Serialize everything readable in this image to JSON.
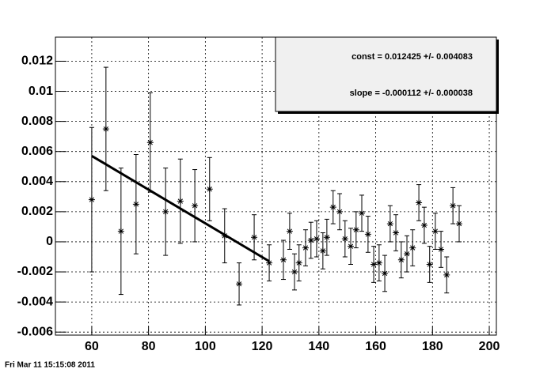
{
  "chart_data": {
    "type": "scatter",
    "x": [
      60,
      65,
      70.3,
      75.6,
      80.6,
      86,
      91.2,
      96.3,
      101.5,
      106.8,
      111.9,
      117.2,
      122.5,
      127.5,
      129.7,
      131.4,
      133,
      135.3,
      137.2,
      139.2,
      141.4,
      142.8,
      145,
      147.3,
      149.2,
      151.2,
      153.1,
      155.1,
      157.3,
      159.3,
      161.2,
      163.2,
      165.1,
      167.1,
      169,
      171,
      173,
      175.2,
      177.1,
      179,
      181,
      183,
      185,
      187.2,
      189.4
    ],
    "values": [
      0.0028,
      0.0075,
      0.0007,
      0.0025,
      0.0066,
      0.002,
      0.0027,
      0.0024,
      0.0035,
      0.0004,
      -0.0028,
      0.0003,
      -0.0014,
      -0.0012,
      0.0007,
      -0.002,
      -0.0014,
      -0.0004,
      0.0001,
      0.0002,
      -0.0006,
      0.0003,
      0.0023,
      0.002,
      0.0002,
      -0.0003,
      0.0008,
      0.0019,
      0.0005,
      -0.0015,
      -0.0014,
      -0.0021,
      0.0012,
      0.0006,
      -0.0012,
      -0.0008,
      -0.0004,
      0.0026,
      0.0011,
      -0.0015,
      0.0007,
      -0.0005,
      -0.0022,
      0.0024,
      0.0012
    ],
    "errors": [
      0.0048,
      0.0041,
      0.0042,
      0.0033,
      0.0033,
      0.0029,
      0.0028,
      0.0024,
      0.0021,
      0.0018,
      0.0014,
      0.0015,
      0.0012,
      0.0013,
      0.0012,
      0.0012,
      0.0012,
      0.0012,
      0.0012,
      0.0012,
      0.0012,
      0.0012,
      0.0011,
      0.0012,
      0.0012,
      0.0012,
      0.0012,
      0.0012,
      0.0012,
      0.0012,
      0.0012,
      0.0012,
      0.0012,
      0.0012,
      0.0012,
      0.0012,
      0.0012,
      0.0012,
      0.0012,
      0.0012,
      0.0012,
      0.0012,
      0.0012,
      0.0012,
      0.0012
    ],
    "color": "#000000",
    "xlim": [
      47.2,
      202.5
    ],
    "xticks": [
      60,
      80,
      100,
      120,
      140,
      160,
      180,
      200
    ],
    "ylim": [
      -0.0062,
      0.0136
    ],
    "yticks": [
      -0.006,
      -0.004,
      -0.002,
      0,
      0.002,
      0.004,
      0.006,
      0.008,
      0.01,
      0.012
    ],
    "grid": true,
    "fit": {
      "const": 0.012425,
      "slope": -0.000112,
      "range": [
        60,
        122.5
      ],
      "lines": [
        "const = 0.012425 +/- 0.004083",
        "slope = -0.000112 +/- 0.000038"
      ]
    }
  },
  "footer": "Fri Mar 11 15:15:08 2011"
}
